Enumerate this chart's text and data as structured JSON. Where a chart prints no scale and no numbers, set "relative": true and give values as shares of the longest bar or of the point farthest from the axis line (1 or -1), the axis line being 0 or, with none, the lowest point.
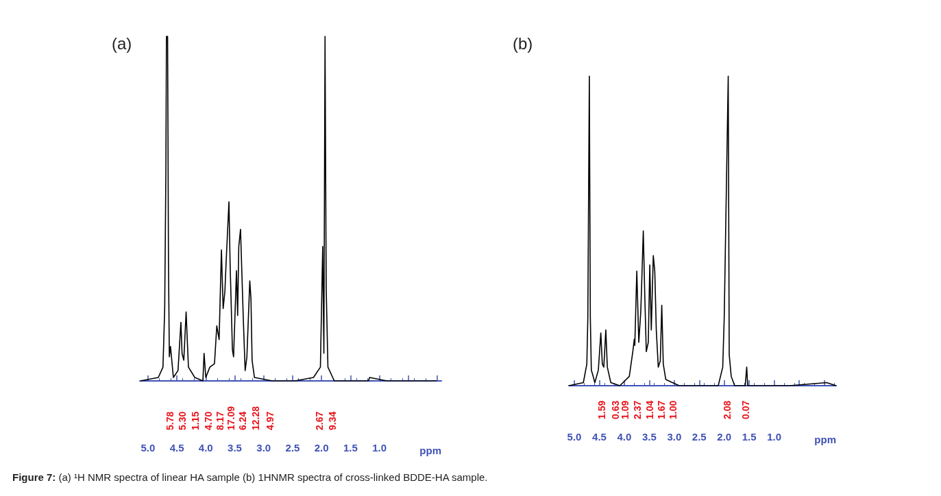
{
  "chart_data": [
    {
      "type": "line",
      "title": "(a)",
      "xlabel": "ppm",
      "relative": true,
      "xlim": [
        5.14,
        -0.07
      ],
      "xticks": [
        {
          "value": 5,
          "label": "5.0"
        },
        {
          "value": 4.5,
          "label": "4.5"
        },
        {
          "value": 4,
          "label": "4.0"
        },
        {
          "value": 3.5,
          "label": "3.5"
        },
        {
          "value": 3,
          "label": "3.0"
        },
        {
          "value": 2.5,
          "label": "2.5"
        },
        {
          "value": 2,
          "label": "2.0"
        },
        {
          "value": 1.5,
          "label": "1.5"
        },
        {
          "value": 1,
          "label": "1.0"
        },
        {
          "value": 0.5,
          "label": null
        },
        {
          "value": 0,
          "label": null
        }
      ],
      "grid": false,
      "marker": "none",
      "tick_labels": "x",
      "series": [
        {
          "color": "#000000",
          "x": [
            5.13,
            4.82,
            4.74,
            4.71,
            4.69,
            4.68,
            4.66,
            4.645,
            4.63,
            4.61,
            4.56,
            4.48,
            4.43,
            4.41,
            4.38,
            4.34,
            4.3,
            4.19,
            4.05,
            4.03,
            4.0,
            3.93,
            3.85,
            3.81,
            3.77,
            3.73,
            3.7,
            3.67,
            3.65,
            3.6,
            3.58,
            3.54,
            3.52,
            3.47,
            3.45,
            3.43,
            3.4,
            3.38,
            3.35,
            3.32,
            3.29,
            3.24,
            3.22,
            3.2,
            3.16,
            2.85,
            2.46,
            2.14,
            2.02,
            1.98,
            1.96,
            1.94,
            1.92,
            1.89,
            1.78,
            1.19,
            1.17,
            0.87,
            0.01
          ],
          "values": [
            0,
            0.01,
            0.04,
            0.21,
            0.6,
            1,
            1,
            0.35,
            0.07,
            0.1,
            0.01,
            0.03,
            0.17,
            0.08,
            0.06,
            0.2,
            0.04,
            0.01,
            0,
            0.08,
            0.01,
            0.04,
            0.05,
            0.16,
            0.12,
            0.38,
            0.21,
            0.26,
            0.34,
            0.52,
            0.34,
            0.09,
            0.07,
            0.32,
            0.19,
            0.39,
            0.44,
            0.33,
            0.17,
            0.03,
            0.07,
            0.29,
            0.24,
            0.06,
            0.01,
            0,
            0,
            0.01,
            0.04,
            0.39,
            0.08,
            1,
            0.27,
            0.04,
            0,
            0,
            0.01,
            0,
            0
          ]
        }
      ],
      "annotations": [
        "5.78",
        "5.30",
        "1.15",
        "4.70",
        "8.17",
        "17.09",
        "6.24",
        "12.28",
        "4.97",
        "2.67",
        "9.34",
        "Figure 7: (a) ¹H NMR spectra of linear HA sample (b) 1HNMR spectra of cross-linked BDDE-HA sample."
      ]
    },
    {
      "type": "line",
      "title": "(b)",
      "xlabel": "ppm",
      "relative": true,
      "xlim": [
        5.11,
        -0.24
      ],
      "xticks": [
        {
          "value": 5,
          "label": "5.0"
        },
        {
          "value": 4.5,
          "label": "4.5"
        },
        {
          "value": 4,
          "label": "4.0"
        },
        {
          "value": 3.5,
          "label": "3.5"
        },
        {
          "value": 3,
          "label": "3.0"
        },
        {
          "value": 2.5,
          "label": "2.5"
        },
        {
          "value": 2,
          "label": "2.0"
        },
        {
          "value": 1.5,
          "label": "1.5"
        },
        {
          "value": 1,
          "label": "1.0"
        },
        {
          "value": 0.5,
          "label": null
        },
        {
          "value": 0,
          "label": null
        }
      ],
      "grid": false,
      "marker": "none",
      "tick_labels": "x",
      "series": [
        {
          "color": "#000000",
          "x": [
            5.11,
            4.82,
            4.75,
            4.73,
            4.7,
            4.68,
            4.66,
            4.64,
            4.59,
            4.52,
            4.47,
            4.44,
            4.41,
            4.37,
            4.34,
            4.27,
            4.09,
            3.9,
            3.83,
            3.8,
            3.79,
            3.75,
            3.71,
            3.67,
            3.65,
            3.62,
            3.59,
            3.56,
            3.52,
            3.49,
            3.46,
            3.42,
            3.39,
            3.36,
            3.32,
            3.28,
            3.25,
            3.22,
            3.17,
            2.9,
            2.53,
            2.12,
            2.03,
            2.0,
            1.92,
            1.9,
            1.86,
            1.79,
            1.58,
            1.55,
            1.53,
            1.16,
            0.7,
            -0.05,
            -0.24
          ],
          "values": [
            0,
            0.01,
            0.07,
            0.22,
            1,
            0.22,
            0.05,
            0.04,
            0.01,
            0.05,
            0.17,
            0.07,
            0.06,
            0.18,
            0.06,
            0.01,
            0,
            0.03,
            0.11,
            0.15,
            0.13,
            0.37,
            0.14,
            0.24,
            0.34,
            0.5,
            0.29,
            0.11,
            0.14,
            0.39,
            0.18,
            0.42,
            0.37,
            0.18,
            0.06,
            0.08,
            0.26,
            0.07,
            0.02,
            0,
            0,
            0,
            0.06,
            0.22,
            1,
            0.1,
            0.03,
            0,
            0,
            0.06,
            0,
            0,
            0,
            0.01,
            0
          ]
        }
      ],
      "annotations": [
        "1.59",
        "0.63",
        "1.09",
        "2.37",
        "1.04",
        "1.67",
        "1.00",
        "2.08",
        "0.07"
      ]
    }
  ]
}
